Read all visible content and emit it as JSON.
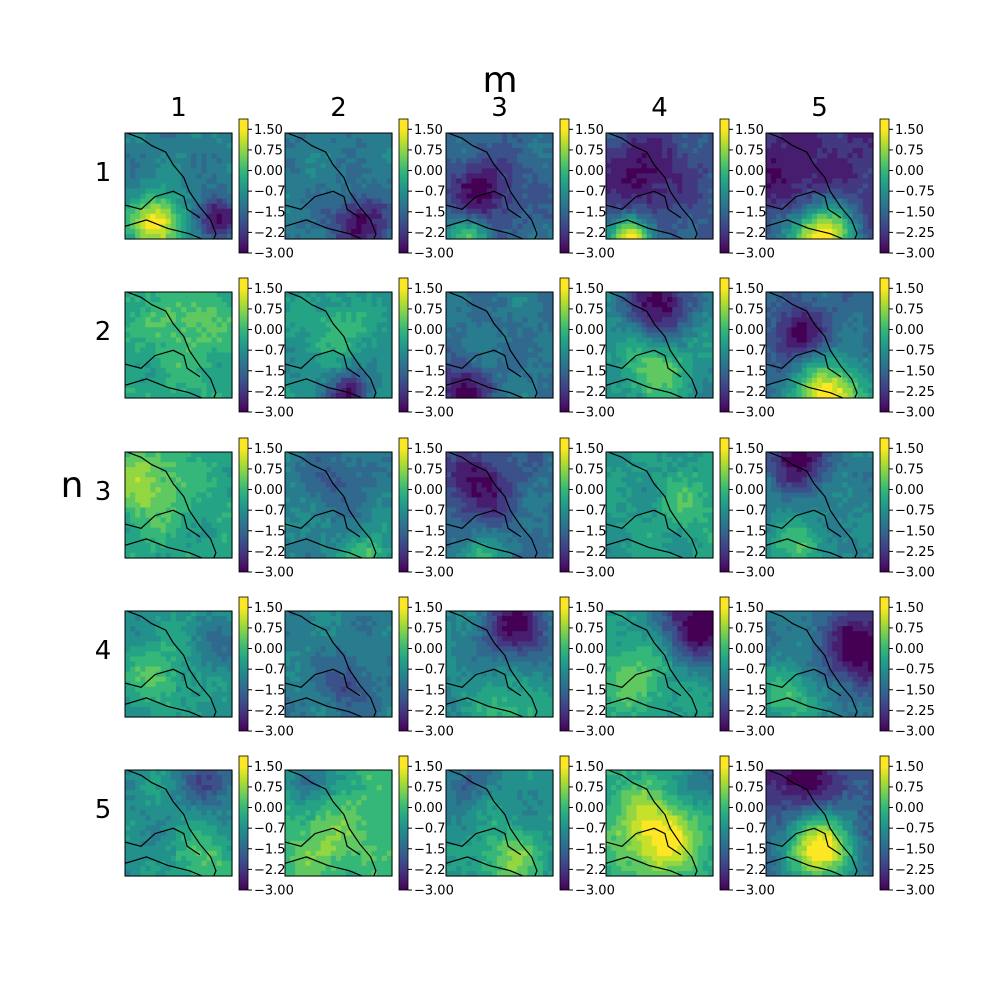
{
  "chart_data": {
    "type": "heatmap",
    "title": "m",
    "ylabel": "n",
    "column_labels": [
      "1",
      "2",
      "3",
      "4",
      "5"
    ],
    "row_labels": [
      "1",
      "2",
      "3",
      "4",
      "5"
    ],
    "colormap": "viridis",
    "color_range": [
      -3.0,
      1.875
    ],
    "colorbar_ticks_truncated": [
      "1.50",
      "0.75",
      "0.00",
      "−0.7",
      "−1.5",
      "−2.2",
      "−3.00"
    ],
    "colorbar_ticks_full": [
      "1.50",
      "0.75",
      "0.00",
      "−0.75",
      "−1.50",
      "−2.25",
      "−3.00"
    ],
    "description_note": "",
    "panels": [
      [
        {
          "row": "1",
          "col": "1",
          "base": -0.9,
          "high": [
            [
              0.3,
              0.85,
              1.8,
              0.25
            ]
          ],
          "low": [
            [
              0.85,
              0.8,
              -2.8,
              0.2
            ]
          ]
        },
        {
          "row": "1",
          "col": "2",
          "base": -1.0,
          "high": [],
          "low": [
            [
              0.7,
              0.85,
              -2.8,
              0.25
            ]
          ]
        },
        {
          "row": "1",
          "col": "3",
          "base": -1.3,
          "high": [
            [
              0.2,
              1.0,
              0.5,
              0.2
            ]
          ],
          "low": [
            [
              0.35,
              0.55,
              -2.8,
              0.3
            ]
          ]
        },
        {
          "row": "1",
          "col": "4",
          "base": -1.6,
          "high": [
            [
              0.25,
              1.0,
              1.8,
              0.2
            ]
          ],
          "low": [
            [
              0.35,
              0.4,
              -2.8,
              0.35
            ]
          ]
        },
        {
          "row": "1",
          "col": "5",
          "base": -2.2,
          "high": [
            [
              0.5,
              1.0,
              1.8,
              0.35
            ]
          ],
          "low": [
            [
              0.3,
              0.5,
              -2.9,
              0.3
            ]
          ]
        }
      ],
      [
        {
          "row": "2",
          "col": "1",
          "base": -0.1,
          "high": [
            [
              0.6,
              0.3,
              0.6,
              0.3
            ]
          ],
          "low": []
        },
        {
          "row": "2",
          "col": "2",
          "base": -0.5,
          "high": [
            [
              0.5,
              0.35,
              0.3,
              0.25
            ]
          ],
          "low": [
            [
              0.6,
              0.95,
              -2.6,
              0.2
            ]
          ]
        },
        {
          "row": "2",
          "col": "3",
          "base": -1.1,
          "high": [],
          "low": [
            [
              0.15,
              0.95,
              -2.8,
              0.25
            ]
          ]
        },
        {
          "row": "2",
          "col": "4",
          "base": -0.6,
          "high": [
            [
              0.45,
              0.75,
              0.6,
              0.3
            ]
          ],
          "low": [
            [
              0.5,
              0.1,
              -3.0,
              0.3
            ]
          ]
        },
        {
          "row": "2",
          "col": "5",
          "base": -1.3,
          "high": [
            [
              0.6,
              1.0,
              1.8,
              0.35
            ]
          ],
          "low": [
            [
              0.3,
              0.4,
              -2.8,
              0.25
            ]
          ]
        }
      ],
      [
        {
          "row": "3",
          "col": "1",
          "base": -0.2,
          "high": [
            [
              0.2,
              0.3,
              1.0,
              0.35
            ]
          ],
          "low": []
        },
        {
          "row": "3",
          "col": "2",
          "base": -0.8,
          "high": [
            [
              0.8,
              1.0,
              0.5,
              0.2
            ]
          ],
          "low": [
            [
              0.5,
              0.25,
              -1.6,
              0.3
            ]
          ]
        },
        {
          "row": "3",
          "col": "3",
          "base": -1.1,
          "high": [
            [
              0.3,
              1.0,
              0.2,
              0.2
            ]
          ],
          "low": [
            [
              0.3,
              0.3,
              -2.7,
              0.35
            ]
          ]
        },
        {
          "row": "3",
          "col": "4",
          "base": -0.4,
          "high": [
            [
              0.8,
              0.5,
              0.2,
              0.3
            ]
          ],
          "low": []
        },
        {
          "row": "3",
          "col": "5",
          "base": -0.8,
          "high": [
            [
              0.3,
              0.9,
              0.3,
              0.25
            ]
          ],
          "low": [
            [
              0.3,
              0.05,
              -2.9,
              0.3
            ]
          ]
        }
      ],
      [
        {
          "row": "4",
          "col": "1",
          "base": -0.5,
          "high": [
            [
              0.3,
              0.6,
              0.4,
              0.3
            ]
          ],
          "low": [
            [
              0.9,
              0.35,
              -1.2,
              0.25
            ]
          ]
        },
        {
          "row": "4",
          "col": "2",
          "base": -0.9,
          "high": [],
          "low": [
            [
              0.6,
              0.7,
              -1.8,
              0.25
            ]
          ]
        },
        {
          "row": "4",
          "col": "3",
          "base": -0.7,
          "high": [
            [
              0.6,
              0.95,
              0.3,
              0.3
            ]
          ],
          "low": [
            [
              0.65,
              0.15,
              -2.8,
              0.3
            ]
          ]
        },
        {
          "row": "4",
          "col": "4",
          "base": -0.4,
          "high": [
            [
              0.3,
              0.6,
              0.6,
              0.35
            ]
          ],
          "low": [
            [
              0.9,
              0.1,
              -3.0,
              0.4
            ]
          ]
        },
        {
          "row": "4",
          "col": "5",
          "base": -0.9,
          "high": [
            [
              0.25,
              0.8,
              0.3,
              0.3
            ]
          ],
          "low": [
            [
              0.9,
              0.35,
              -3.0,
              0.4
            ]
          ]
        }
      ],
      [
        {
          "row": "5",
          "col": "1",
          "base": -0.6,
          "high": [
            [
              0.75,
              0.85,
              0.4,
              0.3
            ]
          ],
          "low": [
            [
              0.8,
              0.1,
              -1.8,
              0.25
            ]
          ]
        },
        {
          "row": "5",
          "col": "2",
          "base": 0.0,
          "high": [
            [
              0.35,
              0.7,
              0.8,
              0.3
            ],
            [
              0.85,
              0.5,
              0.4,
              0.3
            ]
          ],
          "low": [
            [
              0.2,
              0.1,
              -1.5,
              0.2
            ]
          ]
        },
        {
          "row": "5",
          "col": "3",
          "base": -0.6,
          "high": [
            [
              0.6,
              0.85,
              0.8,
              0.3
            ]
          ],
          "low": [
            [
              0.2,
              0.1,
              -1.5,
              0.2
            ]
          ]
        },
        {
          "row": "5",
          "col": "4",
          "base": -0.2,
          "high": [
            [
              0.5,
              0.6,
              1.8,
              0.4
            ]
          ],
          "low": [
            [
              0.9,
              0.15,
              -1.2,
              0.3
            ]
          ]
        },
        {
          "row": "5",
          "col": "5",
          "base": -1.8,
          "high": [
            [
              0.5,
              0.75,
              1.8,
              0.35
            ]
          ],
          "low": [
            [
              0.3,
              0.1,
              -3.0,
              0.3
            ]
          ]
        }
      ]
    ]
  }
}
